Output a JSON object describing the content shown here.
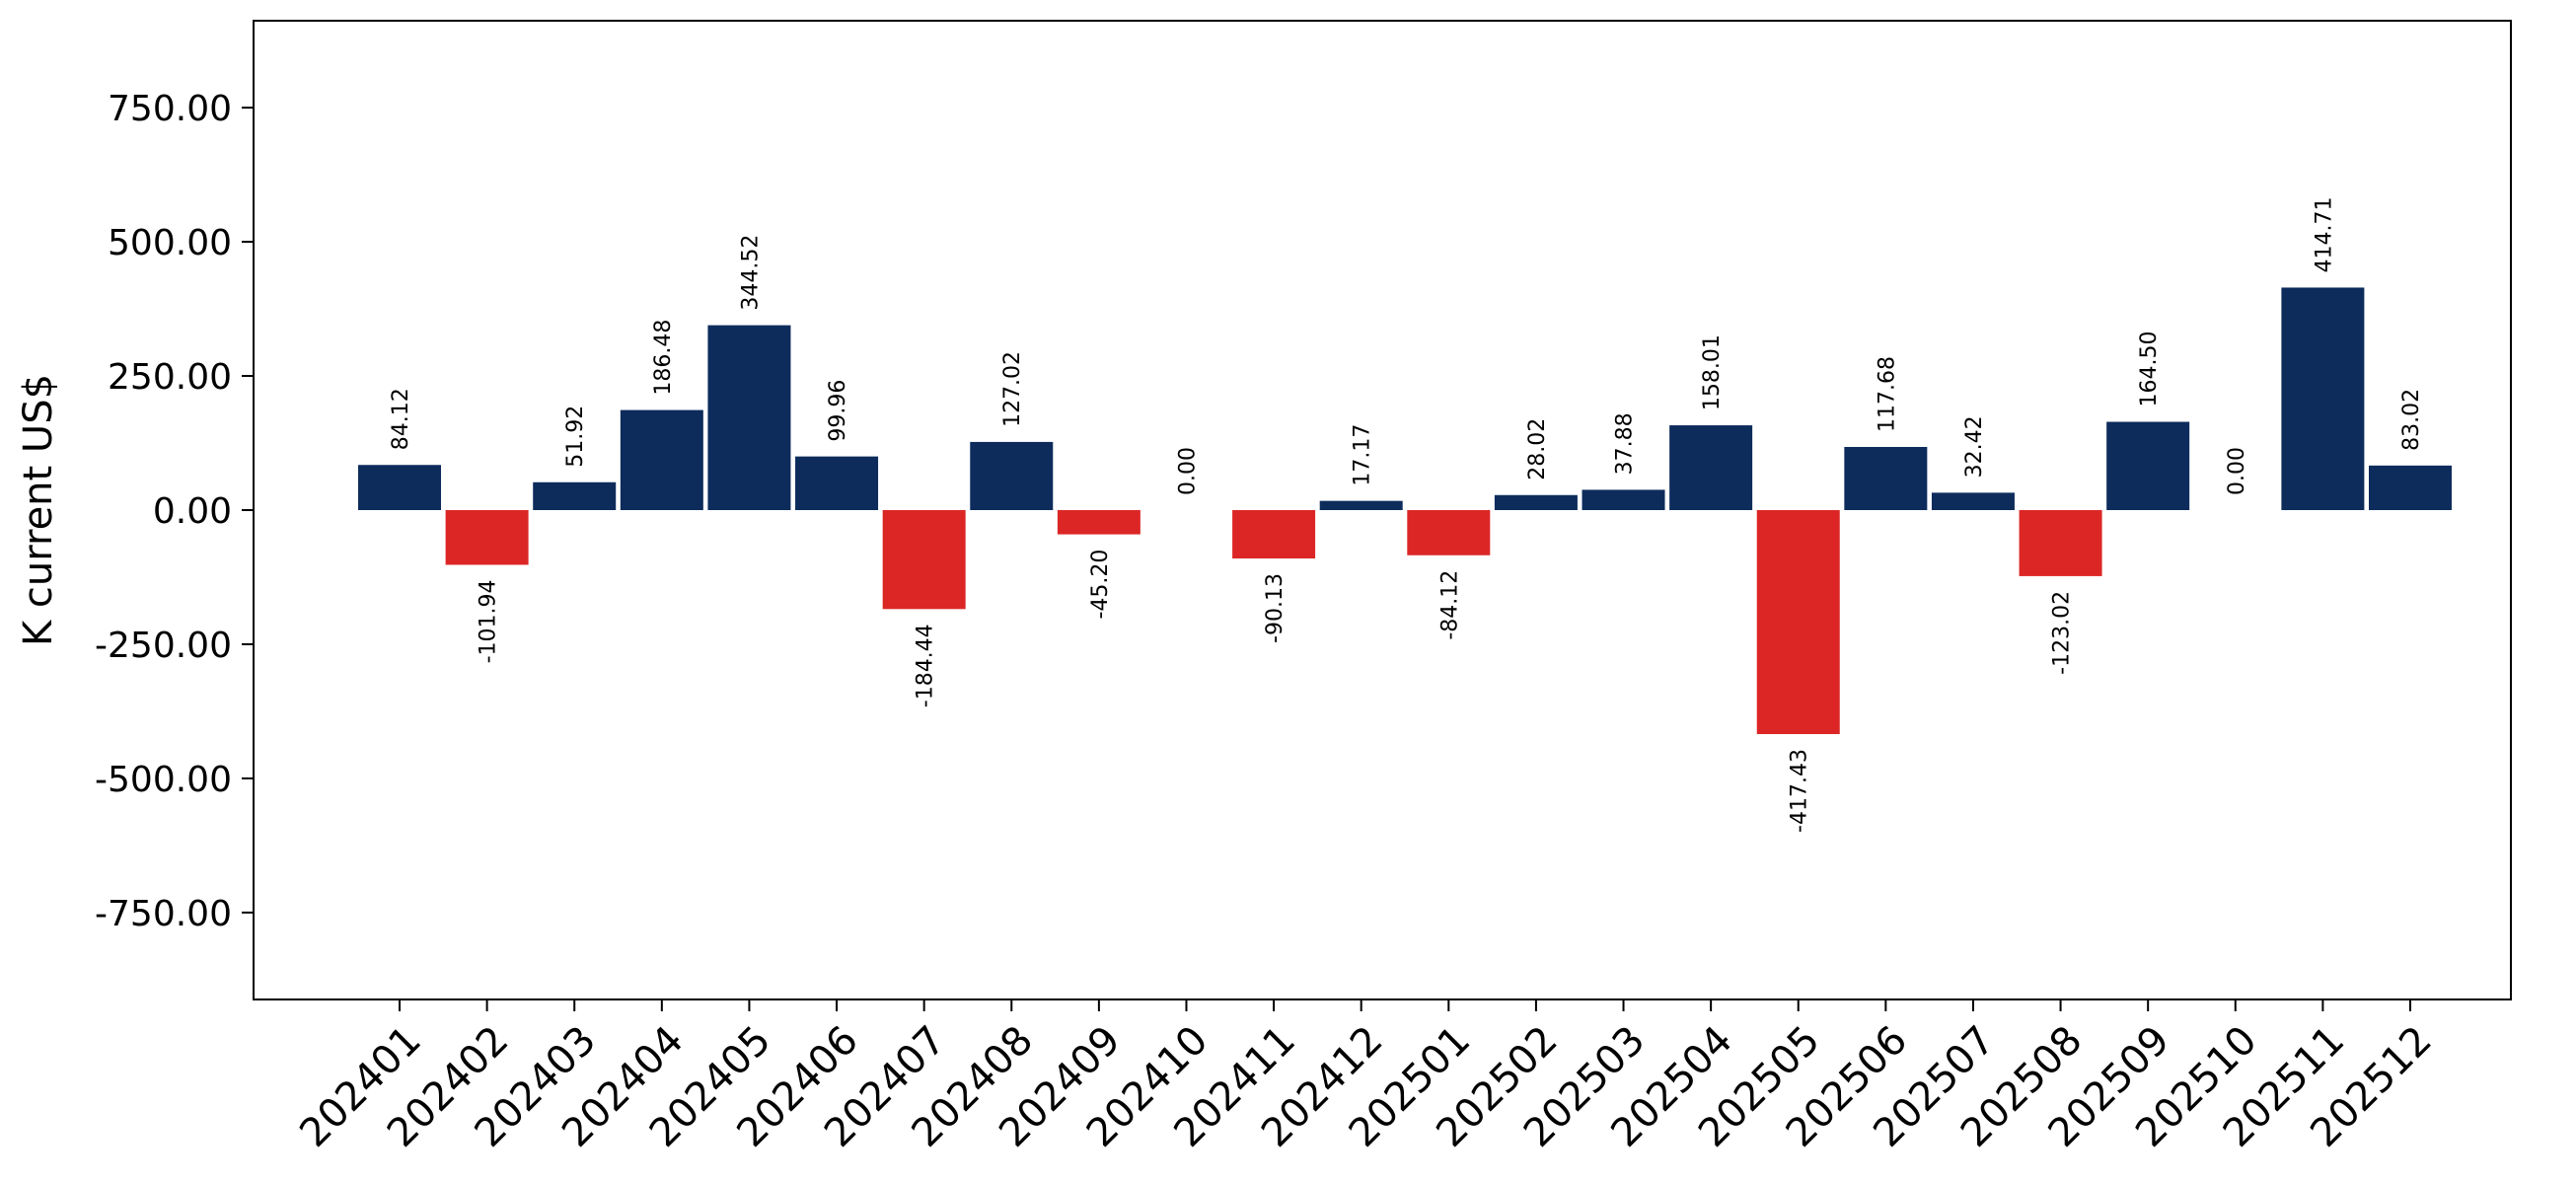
{
  "chart_data": {
    "type": "bar",
    "title": "",
    "xlabel": "",
    "ylabel": "K current US$",
    "ylim": [
      -912,
      912
    ],
    "yticks": [
      -750,
      -500,
      -250,
      0,
      250,
      500,
      750
    ],
    "ytick_labels": [
      "-750.00",
      "-500.00",
      "-250.00",
      "0.00",
      "250.00",
      "500.00",
      "750.00"
    ],
    "grid": false,
    "legend": "none",
    "colors": {
      "positive": "#0d2c5c",
      "negative": "#dc2626"
    },
    "categories": [
      "202401",
      "202402",
      "202403",
      "202404",
      "202405",
      "202406",
      "202407",
      "202408",
      "202409",
      "202410",
      "202411",
      "202412",
      "202501",
      "202502",
      "202503",
      "202504",
      "202505",
      "202506",
      "202507",
      "202508",
      "202509",
      "202510",
      "202511",
      "202512"
    ],
    "values": [
      84.12,
      -101.94,
      51.92,
      186.48,
      344.52,
      99.96,
      -184.44,
      127.02,
      -45.2,
      0.0,
      -90.13,
      17.17,
      -84.12,
      28.02,
      37.88,
      158.01,
      -417.43,
      117.68,
      32.42,
      -123.02,
      164.5,
      0.0,
      414.71,
      83.02
    ],
    "value_labels": [
      "84.12",
      "-101.94",
      "51.92",
      "186.48",
      "344.52",
      "99.96",
      "-184.44",
      "127.02",
      "-45.20",
      "0.00",
      "-90.13",
      "17.17",
      "-84.12",
      "28.02",
      "37.88",
      "158.01",
      "-417.43",
      "117.68",
      "32.42",
      "-123.02",
      "164.50",
      "0.00",
      "414.71",
      "83.02"
    ]
  }
}
